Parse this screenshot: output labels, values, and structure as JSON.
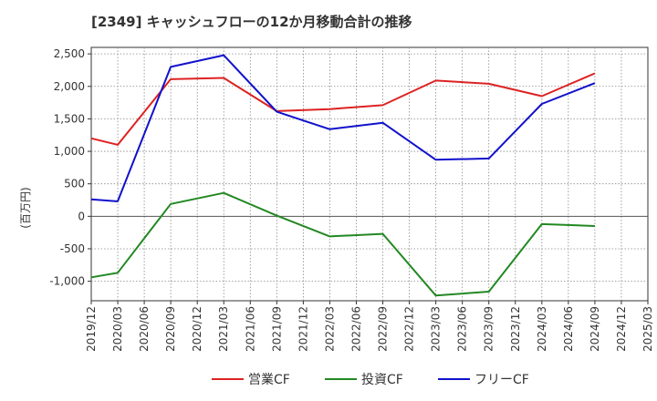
{
  "chart_data": {
    "type": "line",
    "title": "[2349]  キャッシュフローの12か月移動合計の推移",
    "ylabel": "(百万円)",
    "xlabel": "",
    "ylim": [
      -1300,
      2600
    ],
    "yticks": [
      -1000,
      -500,
      0,
      500,
      1000,
      1500,
      2000,
      2500
    ],
    "ytick_labels": [
      "-1,000",
      "-500",
      "0",
      "500",
      "1,000",
      "1,500",
      "2,000",
      "2,500"
    ],
    "categories": [
      "2019/12",
      "2020/03",
      "2020/06",
      "2020/09",
      "2020/12",
      "2021/03",
      "2021/06",
      "2021/09",
      "2021/12",
      "2022/03",
      "2022/06",
      "2022/09",
      "2022/12",
      "2023/03",
      "2023/06",
      "2023/09",
      "2023/12",
      "2024/03",
      "2024/06",
      "2024/09",
      "2024/12",
      "2025/03"
    ],
    "grid": true,
    "legend_position": "bottom",
    "series": [
      {
        "name": "営業CF",
        "color": "#dd2222",
        "values": [
          1200,
          1100,
          null,
          2110,
          null,
          2130,
          null,
          1620,
          null,
          1650,
          null,
          1710,
          null,
          2090,
          null,
          2040,
          null,
          1850,
          null,
          2200,
          null,
          null
        ]
      },
      {
        "name": "投資CF",
        "color": "#228822",
        "values": [
          -940,
          -870,
          null,
          190,
          null,
          360,
          null,
          10,
          null,
          -310,
          null,
          -270,
          null,
          -1220,
          null,
          -1160,
          null,
          -120,
          null,
          -150,
          null,
          null
        ]
      },
      {
        "name": "フリーCF",
        "color": "#1111cc",
        "values": [
          260,
          230,
          null,
          2300,
          null,
          2480,
          null,
          1610,
          null,
          1340,
          null,
          1440,
          null,
          870,
          null,
          890,
          null,
          1730,
          null,
          2050,
          null,
          null
        ]
      }
    ]
  }
}
